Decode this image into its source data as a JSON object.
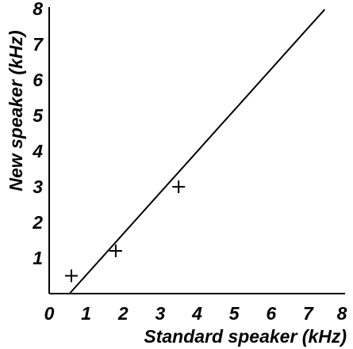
{
  "chart_data": {
    "type": "scatter",
    "title": "",
    "xlabel": "Standard speaker (kHz)",
    "ylabel": "New speaker (kHz)",
    "xlim": [
      0,
      8
    ],
    "ylim": [
      0,
      8
    ],
    "x_ticks": [
      "0",
      "1",
      "2",
      "3",
      "4",
      "5",
      "6",
      "7",
      "8"
    ],
    "y_ticks": [
      "1",
      "2",
      "3",
      "4",
      "5",
      "6",
      "7",
      "8"
    ],
    "grid": false,
    "series": [
      {
        "marker": "plus",
        "x": [
          0.6,
          1.8,
          3.5
        ],
        "y": [
          0.5,
          1.2,
          3.0
        ]
      }
    ],
    "fit_line": {
      "x": [
        0.55,
        7.45
      ],
      "y": [
        0.0,
        7.98
      ]
    },
    "colors": {
      "marks": "#000000",
      "axes": "#000000",
      "background": "#ffffff"
    }
  }
}
